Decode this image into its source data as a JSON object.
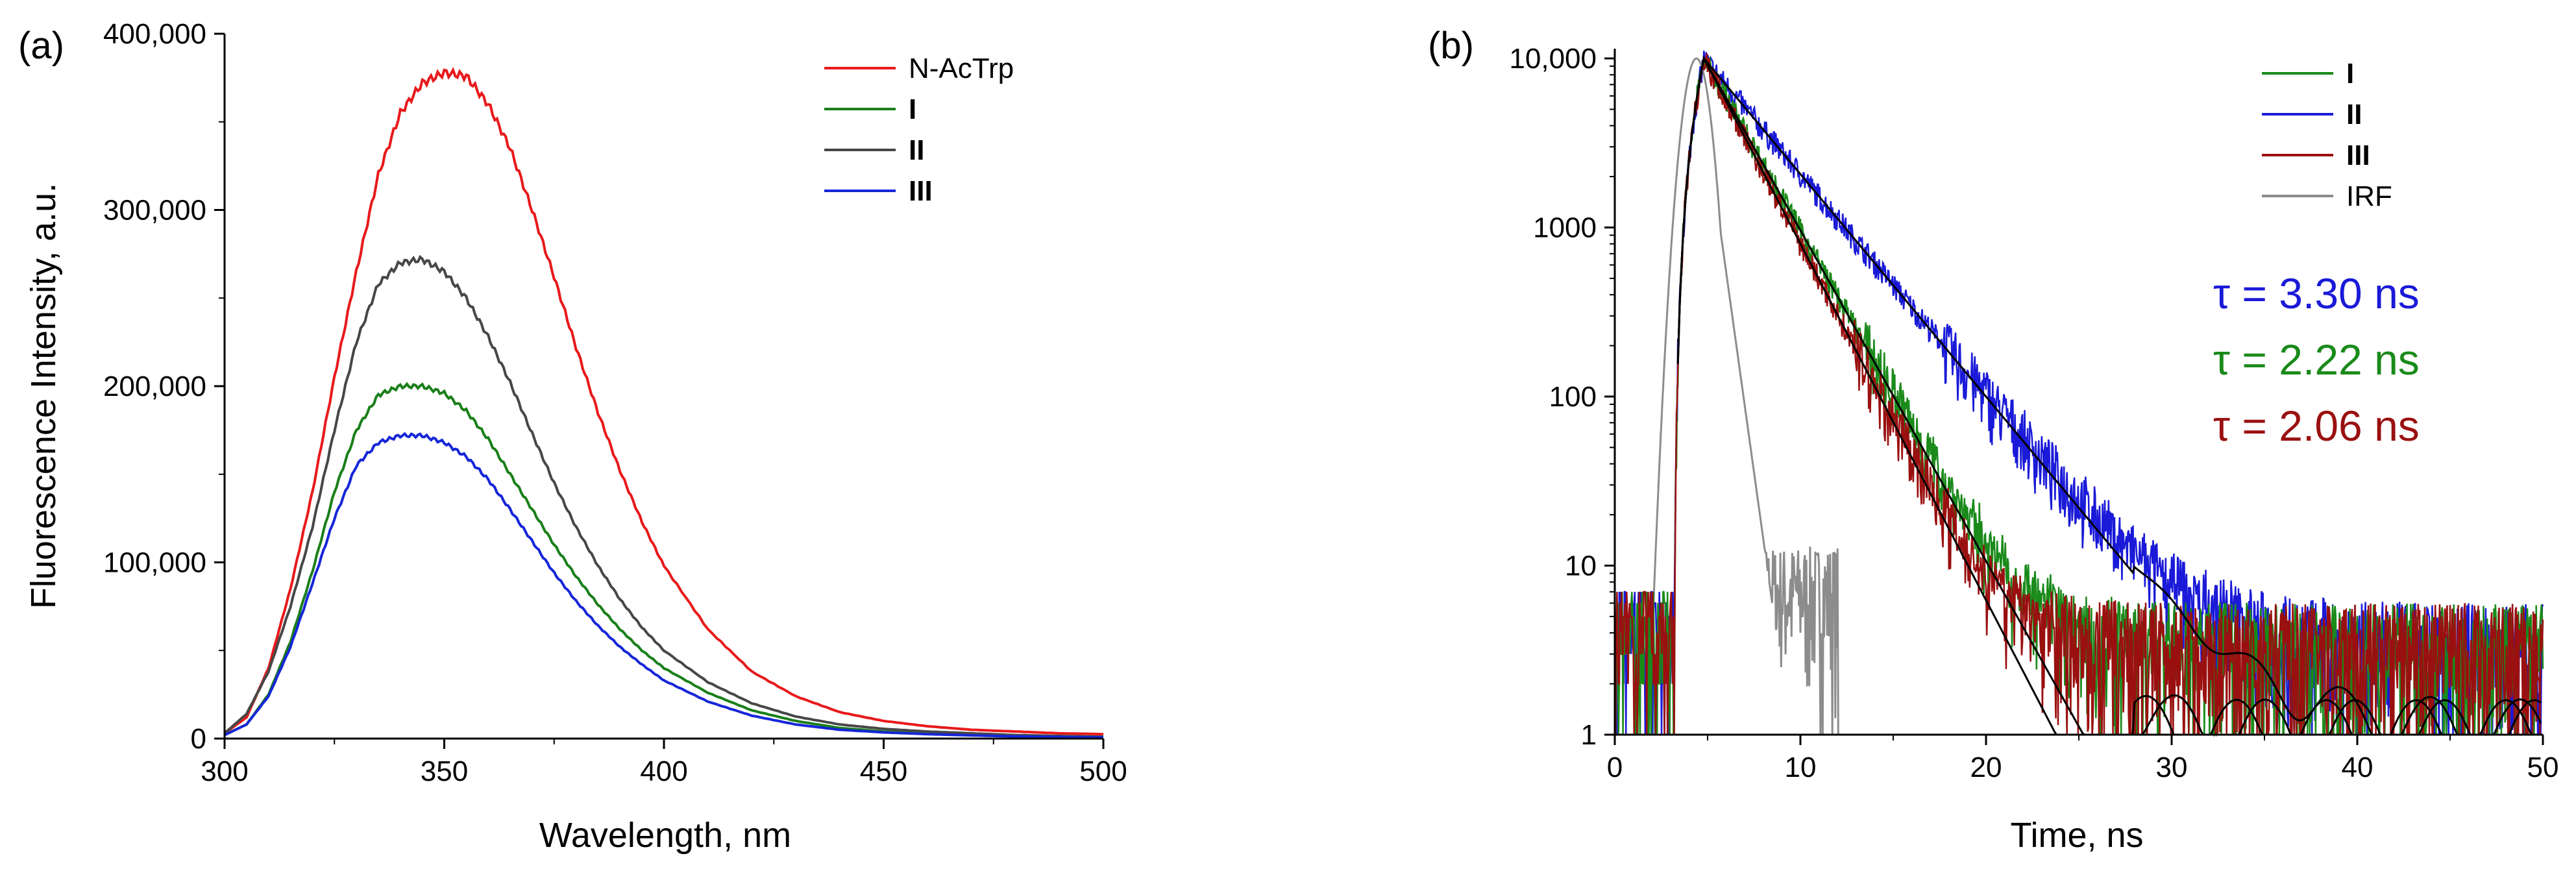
{
  "chart_data": [
    {
      "type": "line",
      "panel_label": "(a)",
      "xlabel": "Wavelength, nm",
      "ylabel": "Fluorescence Intensity, a.u.",
      "xlim": [
        300,
        500
      ],
      "ylim": [
        0,
        400000
      ],
      "x_ticks": [
        {
          "value": 300,
          "label": "300"
        },
        {
          "value": 350,
          "label": "350"
        },
        {
          "value": 400,
          "label": "400"
        },
        {
          "value": 450,
          "label": "450"
        },
        {
          "value": 500,
          "label": "500"
        }
      ],
      "y_ticks": [
        {
          "value": 0,
          "label": "0"
        },
        {
          "value": 100000,
          "label": "100,000"
        },
        {
          "value": 200000,
          "label": "200,000"
        },
        {
          "value": 300000,
          "label": "300,000"
        },
        {
          "value": 400000,
          "label": "400,000"
        }
      ],
      "legend_position": "top-right",
      "x": [
        300,
        305,
        310,
        315,
        320,
        325,
        330,
        335,
        340,
        345,
        350,
        355,
        360,
        365,
        370,
        375,
        380,
        385,
        390,
        395,
        400,
        410,
        420,
        430,
        440,
        450,
        460,
        470,
        480,
        490,
        500
      ],
      "series": [
        {
          "name": "N-AcTrp",
          "bold": false,
          "color": "#e8191b",
          "values": [
            3000,
            12000,
            40000,
            85000,
            140000,
            205000,
            265000,
            320000,
            355000,
            372000,
            378000,
            376000,
            360000,
            335000,
            300000,
            262000,
            222000,
            185000,
            152000,
            123000,
            98000,
            62000,
            38000,
            24000,
            15000,
            10000,
            7000,
            5000,
            4000,
            3000,
            2500
          ]
        },
        {
          "name": "I",
          "bold": true,
          "color": "#1a7f1a",
          "values": [
            2000,
            8000,
            25000,
            55000,
            95000,
            140000,
            175000,
            195000,
            200000,
            200000,
            196000,
            186000,
            170000,
            150000,
            130000,
            110000,
            92000,
            76000,
            62000,
            50000,
            40000,
            26000,
            16000,
            10000,
            6000,
            4000,
            3000,
            2000,
            1500,
            1000,
            800
          ]
        },
        {
          "name": "II",
          "bold": true,
          "color": "#474747",
          "values": [
            3000,
            14000,
            38000,
            75000,
            120000,
            175000,
            225000,
            258000,
            270000,
            272000,
            265000,
            250000,
            228000,
            202000,
            173000,
            145000,
            120000,
            98000,
            79000,
            63000,
            50000,
            32000,
            20000,
            12500,
            8000,
            5500,
            4000,
            3000,
            2000,
            1500,
            1000
          ]
        },
        {
          "name": "III",
          "bold": true,
          "color": "#1626d8",
          "values": [
            2000,
            8000,
            24000,
            52000,
            88000,
            125000,
            155000,
            168000,
            172000,
            172000,
            168000,
            160000,
            147000,
            130000,
            112000,
            94000,
            78000,
            64000,
            52000,
            42000,
            33000,
            21000,
            13000,
            8000,
            5000,
            3500,
            2500,
            1800,
            1200,
            900,
            700
          ]
        }
      ]
    },
    {
      "type": "line",
      "panel_label": "(b)",
      "xlabel": "Time, ns",
      "ylabel": "",
      "yscale": "log",
      "xlim": [
        0,
        50
      ],
      "ylim": [
        1,
        10000
      ],
      "x_ticks": [
        {
          "value": 0,
          "label": "0"
        },
        {
          "value": 10,
          "label": "10"
        },
        {
          "value": 20,
          "label": "20"
        },
        {
          "value": 30,
          "label": "30"
        },
        {
          "value": 40,
          "label": "40"
        },
        {
          "value": 50,
          "label": "50"
        }
      ],
      "y_ticks": [
        {
          "value": 1,
          "label": "1"
        },
        {
          "value": 10,
          "label": "10"
        },
        {
          "value": 100,
          "label": "100"
        },
        {
          "value": 1000,
          "label": "1000"
        },
        {
          "value": 10000,
          "label": "10,000"
        }
      ],
      "legend_position": "top-right",
      "peak_time_ns": 4.8,
      "noise_floor_counts": 2,
      "series": [
        {
          "name": "I",
          "bold": true,
          "color": "#1a8a1a",
          "tau_ns": 2.22
        },
        {
          "name": "II",
          "bold": true,
          "color": "#1a1ad8",
          "tau_ns": 3.3
        },
        {
          "name": "III",
          "bold": true,
          "color": "#9a1010",
          "tau_ns": 2.06
        },
        {
          "name": "IRF",
          "bold": false,
          "color": "#8c8c8c",
          "width_ns": 0.6
        }
      ],
      "fit_color": "#000000",
      "annotations": [
        {
          "text": "τ = 3.30 ns",
          "color": "#1a1ad8"
        },
        {
          "text": "τ = 2.22 ns",
          "color": "#1a8a1a"
        },
        {
          "text": "τ = 2.06 ns",
          "color": "#9a1010"
        }
      ]
    }
  ]
}
